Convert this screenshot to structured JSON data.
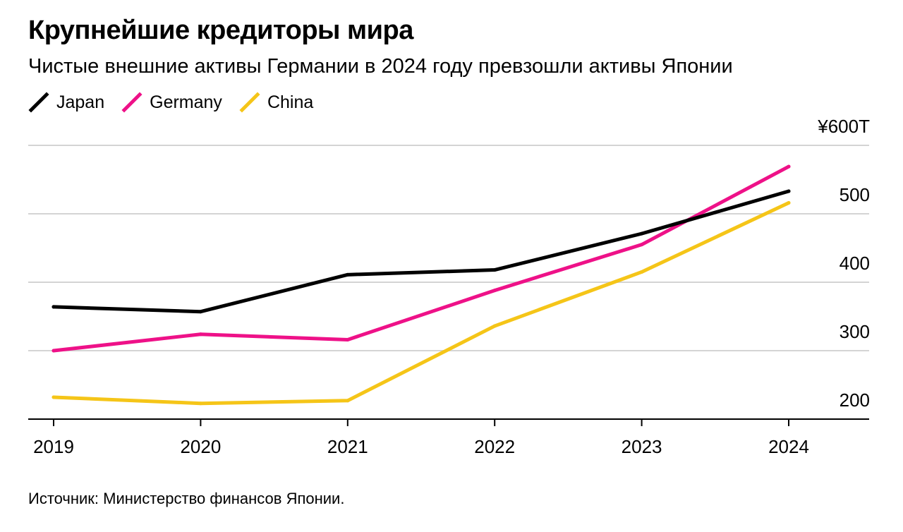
{
  "chart_data": {
    "type": "line",
    "title": "Крупнейшие кредиторы мира",
    "subtitle": "Чистые внешние активы Германии в 2024 году превзошли активы Японии",
    "source": "Источник: Министерство финансов Японии.",
    "x": [
      "2019",
      "2020",
      "2021",
      "2022",
      "2023",
      "2024"
    ],
    "series": [
      {
        "name": "Japan",
        "color": "#000000",
        "values": [
          364,
          357,
          411,
          418,
          471,
          533
        ]
      },
      {
        "name": "Germany",
        "color": "#ee1188",
        "values": [
          300,
          324,
          316,
          388,
          455,
          569
        ]
      },
      {
        "name": "China",
        "color": "#f5c518",
        "values": [
          232,
          223,
          227,
          336,
          415,
          516
        ]
      }
    ],
    "yticks": [
      {
        "value": 600,
        "label": "¥600T"
      },
      {
        "value": 500,
        "label": "500"
      },
      {
        "value": 400,
        "label": "400"
      },
      {
        "value": 300,
        "label": "300"
      },
      {
        "value": 200,
        "label": "200"
      }
    ],
    "ylim": [
      200,
      600
    ],
    "grid": true,
    "legend": "top-left",
    "xlabel": "",
    "ylabel": ""
  }
}
